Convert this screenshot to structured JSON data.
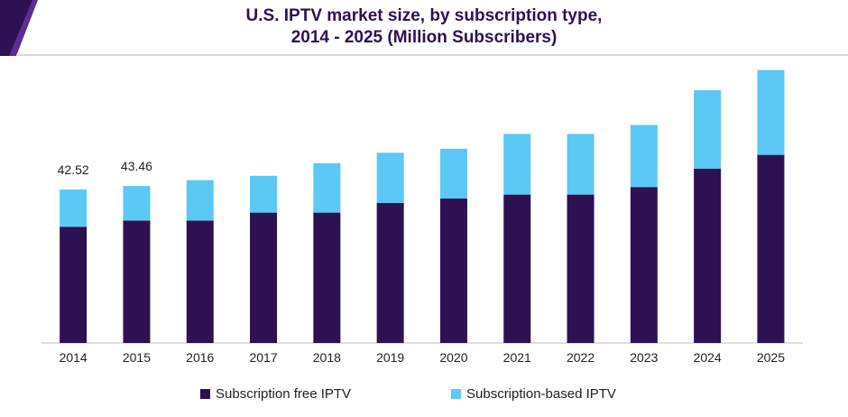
{
  "title_line1": "U.S. IPTV market size, by subscription type,",
  "title_line2": "2014 - 2025 (Million Subscribers)",
  "colors": {
    "title": "#2e1152",
    "banner_dark": "#2e1152",
    "banner_accent": "#5b2e90",
    "banner_line": "#d9d9e3"
  },
  "chart_data": {
    "type": "bar",
    "stacked": true,
    "categories": [
      "2014",
      "2015",
      "2016",
      "2017",
      "2018",
      "2019",
      "2020",
      "2021",
      "2022",
      "2023",
      "2024",
      "2025"
    ],
    "series": [
      {
        "name": "Subscription free IPTV",
        "color": "#2e1152",
        "values": [
          32.2,
          33.9,
          33.9,
          36.1,
          36.1,
          38.8,
          40.0,
          41.1,
          41.1,
          43.2,
          48.3,
          52.1
        ]
      },
      {
        "name": "Subscription-based IPTV",
        "color": "#5bc8f5",
        "values": [
          10.32,
          9.56,
          11.2,
          10.2,
          13.7,
          13.9,
          13.8,
          16.8,
          16.8,
          17.2,
          21.7,
          23.5
        ]
      }
    ],
    "data_labels": [
      {
        "category": "2014",
        "text": "42.52"
      },
      {
        "category": "2015",
        "text": "43.46"
      }
    ],
    "ylim": [
      0,
      90
    ],
    "grid": false,
    "legend_position": "bottom",
    "xlabel": "",
    "ylabel": ""
  }
}
